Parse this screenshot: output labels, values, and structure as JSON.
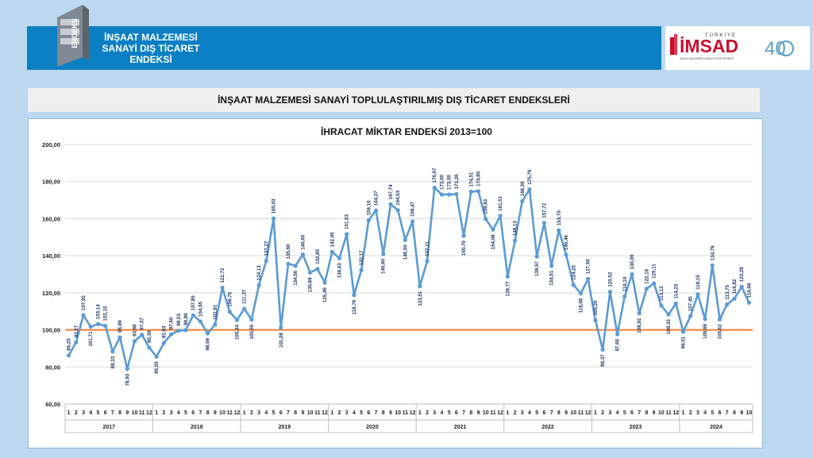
{
  "header": {
    "logo_text": "ENDEKS",
    "title_lines": [
      "İNŞAAT MALZEMESİ",
      "SANAYİ DIŞ TİCARET",
      "ENDEKSİ"
    ],
    "brand_small": "TÜRKİYE",
    "brand_name": "İMSAD",
    "brand_tagline": "İNŞAAT MALZEMESİ SANAYİCİLERİ DERNEĞİ",
    "anniversary": "40"
  },
  "subheader": {
    "title": "İNŞAAT MALZEMESİ SANAYİ TOPLULAŞTIRILMIŞ DIŞ TİCARET ENDEKSLERİ"
  },
  "chart_data": {
    "type": "line",
    "title": "İHRACAT MİKTAR ENDEKSİ 2013=100",
    "xlabel": "",
    "ylabel": "",
    "ylim": [
      60,
      200
    ],
    "yticks": [
      "60,00",
      "80,00",
      "100,00",
      "120,00",
      "140,00",
      "160,00",
      "180,00",
      "200,00"
    ],
    "reference_line": 100,
    "years": [
      "2017",
      "2018",
      "2019",
      "2020",
      "2021",
      "2022",
      "2023",
      "2024"
    ],
    "series": [
      {
        "name": "İhracat Miktar Endeksi",
        "color": "#5b9bd5",
        "values": [
          86.2,
          93.27,
          107.92,
          101.71,
          103.14,
          102.15,
          88.33,
          95.99,
          78.93,
          93.88,
          97.37,
          90.39,
          85.55,
          92.93,
          97.6,
          99.53,
          99.86,
          107.85,
          104.55,
          98.09,
          102.91,
          122.72,
          109.75,
          105.34,
          111.37,
          105.55,
          124.13,
          137.27,
          160.03,
          101.08,
          135.6,
          134.56,
          140.65,
          130.89,
          132.85,
          125.45,
          142.05,
          138.63,
          151.63,
          118.76,
          132.17,
          159.1,
          164.37,
          140.9,
          167.74,
          164.53,
          148.5,
          158.47,
          123.51,
          137.11,
          176.67,
          173.0,
          173.0,
          173.26,
          150.7,
          174.51,
          174.8,
          159.83,
          154.08,
          161.51,
          128.77,
          148.13,
          169.39,
          175.76,
          139.57,
          157.72,
          134.51,
          153.7,
          140.46,
          124.25,
          119.66,
          127.5,
          105.2,
          89.37,
          120.52,
          97.66,
          118.1,
          130.0,
          108.92,
          122.16,
          125.11,
          113.12,
          108.33,
          114.23,
          99.01,
          107.45,
          119.15,
          105.86,
          134.79,
          105.62,
          113.75,
          116.82,
          123.28,
          114.68
        ],
        "labels": [
          "86,20",
          "93,27",
          "107,92",
          "101,71",
          "103,14",
          "102,15",
          "88,33",
          "95,99",
          "78,93",
          "93,88",
          "97,37",
          "90,39",
          "85,55",
          "92,93",
          "97,60",
          "99,53",
          "99,86",
          "107,85",
          "104,55",
          "98,09",
          "102,91",
          "122,72",
          "109,75",
          "105,34",
          "111,37",
          "105,55",
          "124,13",
          "137,27",
          "160,03",
          "101,08",
          "135,60",
          "134,56",
          "140,65",
          "130,89",
          "132,85",
          "125,45",
          "142,05",
          "138,63",
          "151,63",
          "118,76",
          "132,17",
          "159,10",
          "164,37",
          "140,90",
          "167,74",
          "164,53",
          "148,50",
          "158,47",
          "123,51",
          "137,11",
          "176,67",
          "173,00",
          "173,00",
          "173,26",
          "150,70",
          "174,51",
          "174,80",
          "159,83",
          "154,08",
          "161,51",
          "128,77",
          "148,13",
          "169,39",
          "175,76",
          "139,57",
          "157,72",
          "134,51",
          "153,70",
          "140,46",
          "124,25",
          "119,66",
          "127,50",
          "105,20",
          "89,37",
          "120,52",
          "97,66",
          "118,10",
          "130,00",
          "108,92",
          "122,16",
          "125,11",
          "113,12",
          "108,33",
          "114,23",
          "99,01",
          "107,45",
          "119,15",
          "105,86",
          "134,79",
          "105,62",
          "113,75",
          "116,82",
          "123,28",
          "114,68"
        ]
      }
    ],
    "reference_color": "#ed7d31",
    "grid": true,
    "legend": "none"
  }
}
